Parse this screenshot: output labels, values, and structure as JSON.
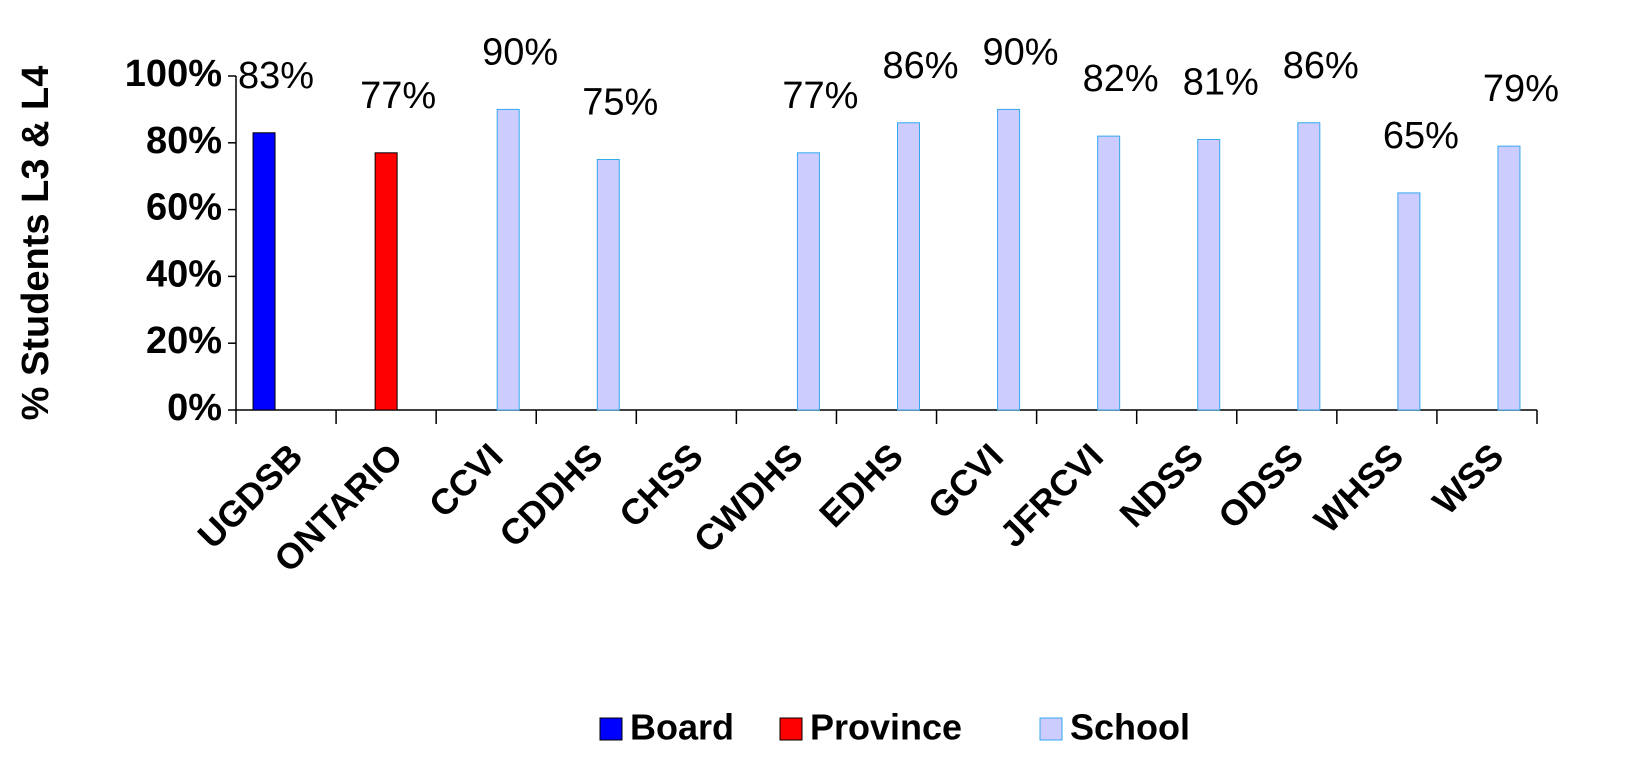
{
  "chart_data": {
    "type": "bar",
    "ylabel": "% Students L3 & L4",
    "categories": [
      "UGDSB",
      "ONTARIO",
      "CCVI",
      "CDDHS",
      "CHSS",
      "CWDHS",
      "EDHS",
      "GCVI",
      "JFRCVI",
      "NDSS",
      "ODSS",
      "WHSS",
      "WSS"
    ],
    "series": [
      {
        "name": "Board",
        "color": "#0000ff",
        "values": [
          83,
          null,
          null,
          null,
          null,
          null,
          null,
          null,
          null,
          null,
          null,
          null,
          null
        ],
        "value_labels": [
          "83%",
          null,
          null,
          null,
          null,
          null,
          null,
          null,
          null,
          null,
          null,
          null,
          null
        ]
      },
      {
        "name": "Province",
        "color": "#ff0000",
        "values": [
          null,
          77,
          null,
          null,
          null,
          null,
          null,
          null,
          null,
          null,
          null,
          null,
          null
        ],
        "value_labels": [
          null,
          "77%",
          null,
          null,
          null,
          null,
          null,
          null,
          null,
          null,
          null,
          null,
          null
        ]
      },
      {
        "name": "School",
        "color": "#ccccff",
        "values": [
          null,
          null,
          90,
          75,
          null,
          77,
          86,
          90,
          82,
          81,
          86,
          65,
          79
        ],
        "value_labels": [
          null,
          null,
          "90%",
          "75%",
          null,
          "77%",
          "86%",
          "90%",
          "82%",
          "81%",
          "86%",
          "65%",
          "79%"
        ]
      }
    ],
    "ylim": [
      0,
      100
    ],
    "yticks": [
      {
        "value": 0,
        "label": "0%"
      },
      {
        "value": 20,
        "label": "20%"
      },
      {
        "value": 40,
        "label": "40%"
      },
      {
        "value": 60,
        "label": "60%"
      },
      {
        "value": 80,
        "label": "80%"
      },
      {
        "value": 100,
        "label": "100%"
      }
    ],
    "grid": false,
    "legend": "bottom"
  }
}
